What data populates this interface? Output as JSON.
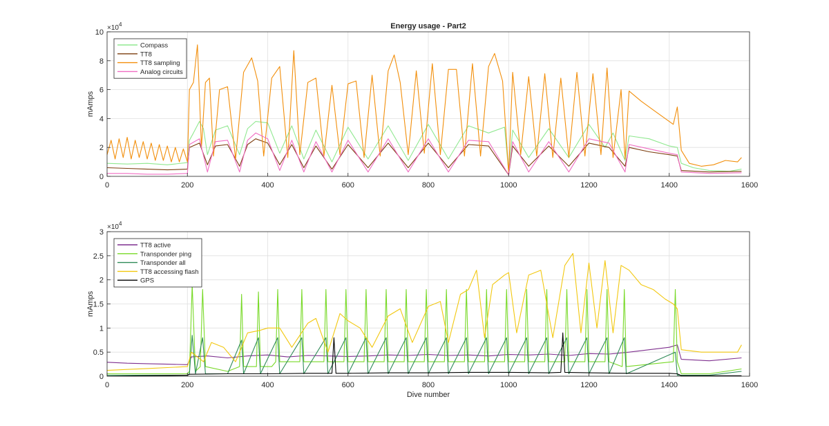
{
  "chart_data": [
    {
      "type": "line",
      "title": "Energy usage - Part2",
      "xlabel": "",
      "ylabel": "mAmps",
      "xlim": [
        0,
        1600
      ],
      "ylim": [
        0,
        10
      ],
      "y_exponent_label": "×10",
      "y_exponent_power": "4",
      "xticks": [
        0,
        200,
        400,
        600,
        800,
        1000,
        1200,
        1400,
        1600
      ],
      "yticks": [
        0,
        2,
        4,
        6,
        8,
        10
      ],
      "grid": true,
      "legend_placement": "top-left",
      "series": [
        {
          "name": "Compass",
          "color": "#8fe88f",
          "x": [
            0,
            50,
            100,
            150,
            200,
            205,
            215,
            230,
            240,
            250,
            270,
            300,
            330,
            350,
            370,
            400,
            430,
            460,
            490,
            520,
            560,
            600,
            650,
            700,
            750,
            800,
            850,
            900,
            950,
            990,
            1000,
            1010,
            1050,
            1100,
            1150,
            1200,
            1240,
            1260,
            1290,
            1300,
            1350,
            1400,
            1420,
            1430,
            1460,
            1500,
            1550,
            1580
          ],
          "y": [
            0.9,
            0.85,
            0.9,
            0.8,
            0.95,
            2.5,
            3.0,
            3.8,
            3.3,
            1.5,
            3.2,
            3.5,
            1.5,
            3.3,
            3.8,
            3.7,
            1.6,
            3.5,
            1.2,
            3.2,
            1.0,
            3.4,
            1.2,
            3.5,
            1.1,
            3.6,
            1.2,
            3.5,
            3.0,
            3.4,
            0.3,
            3.2,
            1.3,
            3.3,
            1.3,
            3.6,
            2.0,
            3.0,
            1.1,
            2.8,
            2.6,
            2.1,
            2.0,
            0.9,
            0.6,
            0.4,
            0.35,
            0.5
          ]
        },
        {
          "name": "TT8",
          "color": "#7b3c0d",
          "x": [
            0,
            50,
            100,
            150,
            200,
            205,
            230,
            250,
            270,
            300,
            330,
            350,
            370,
            400,
            430,
            460,
            490,
            520,
            560,
            600,
            650,
            700,
            750,
            800,
            850,
            900,
            950,
            1000,
            1010,
            1050,
            1100,
            1150,
            1200,
            1250,
            1290,
            1300,
            1350,
            1400,
            1420,
            1430,
            1500,
            1580
          ],
          "y": [
            0.6,
            0.55,
            0.5,
            0.45,
            0.5,
            2.0,
            2.3,
            0.8,
            2.1,
            2.2,
            0.7,
            2.2,
            2.6,
            2.3,
            0.8,
            2.2,
            0.6,
            2.1,
            0.5,
            2.2,
            0.6,
            2.3,
            0.6,
            2.3,
            0.6,
            2.2,
            2.1,
            0.1,
            2.1,
            0.7,
            2.1,
            0.7,
            2.3,
            2.0,
            0.7,
            2.0,
            1.7,
            1.5,
            1.4,
            0.4,
            0.3,
            0.35
          ]
        },
        {
          "name": "TT8 sampling",
          "color": "#f28e0a",
          "x": [
            0,
            10,
            20,
            30,
            40,
            50,
            60,
            70,
            80,
            90,
            100,
            110,
            120,
            130,
            140,
            150,
            160,
            170,
            180,
            190,
            200,
            205,
            215,
            225,
            235,
            245,
            255,
            265,
            280,
            300,
            320,
            340,
            360,
            375,
            390,
            410,
            430,
            450,
            465,
            480,
            500,
            520,
            540,
            560,
            580,
            600,
            620,
            640,
            660,
            680,
            700,
            715,
            730,
            750,
            770,
            790,
            810,
            830,
            850,
            870,
            890,
            910,
            930,
            950,
            965,
            985,
            1000,
            1010,
            1030,
            1050,
            1070,
            1090,
            1110,
            1130,
            1150,
            1170,
            1190,
            1210,
            1230,
            1245,
            1260,
            1280,
            1290,
            1300,
            1330,
            1360,
            1390,
            1410,
            1420,
            1430,
            1450,
            1480,
            1510,
            1540,
            1570,
            1580
          ],
          "y": [
            1.5,
            2.5,
            1.2,
            2.6,
            1.3,
            2.7,
            1.2,
            2.5,
            1.3,
            2.4,
            1.2,
            2.3,
            1.1,
            2.2,
            1.1,
            2.1,
            1.0,
            2.0,
            1.0,
            1.9,
            1.0,
            6.0,
            6.5,
            9.1,
            2.0,
            6.5,
            6.8,
            1.4,
            6.0,
            6.2,
            1.2,
            7.2,
            8.2,
            6.6,
            1.4,
            6.8,
            7.6,
            1.3,
            8.7,
            1.5,
            6.5,
            6.8,
            1.4,
            6.3,
            1.5,
            6.4,
            6.6,
            1.3,
            7.0,
            1.4,
            7.3,
            8.4,
            6.5,
            1.5,
            7.3,
            1.6,
            7.8,
            1.5,
            7.4,
            7.4,
            1.4,
            7.8,
            1.4,
            7.6,
            8.5,
            6.6,
            0.2,
            7.2,
            1.5,
            6.9,
            1.4,
            7.1,
            1.3,
            6.8,
            1.3,
            7.2,
            1.4,
            7.1,
            1.5,
            7.5,
            1.3,
            6.0,
            1.2,
            5.9,
            5.2,
            4.6,
            4.0,
            3.6,
            4.8,
            1.8,
            0.9,
            0.7,
            0.8,
            1.1,
            1.0,
            1.3
          ]
        },
        {
          "name": "Analog circuits",
          "color": "#f06cc2",
          "x": [
            0,
            50,
            100,
            150,
            200,
            205,
            230,
            250,
            270,
            300,
            330,
            350,
            370,
            400,
            430,
            460,
            490,
            520,
            560,
            600,
            650,
            700,
            750,
            800,
            850,
            900,
            950,
            1000,
            1010,
            1050,
            1100,
            1150,
            1200,
            1250,
            1290,
            1300,
            1350,
            1400,
            1420,
            1430,
            1500,
            1580
          ],
          "y": [
            0.2,
            0.2,
            0.15,
            0.15,
            0.2,
            2.2,
            2.6,
            0.3,
            2.4,
            2.5,
            0.3,
            2.5,
            3.0,
            2.6,
            0.4,
            2.5,
            0.3,
            2.4,
            0.3,
            2.5,
            0.3,
            2.6,
            0.3,
            2.6,
            0.3,
            2.5,
            2.4,
            0.1,
            2.4,
            0.3,
            2.4,
            0.3,
            2.6,
            2.3,
            0.3,
            2.2,
            1.9,
            1.6,
            1.5,
            0.3,
            0.2,
            0.25
          ]
        }
      ]
    },
    {
      "type": "line",
      "title": "",
      "xlabel": "Dive number",
      "ylabel": "mAmps",
      "xlim": [
        0,
        1600
      ],
      "ylim": [
        0,
        3
      ],
      "y_exponent_label": "×10",
      "y_exponent_power": "4",
      "xticks": [
        0,
        200,
        400,
        600,
        800,
        1000,
        1200,
        1400,
        1600
      ],
      "yticks": [
        0,
        0.5,
        1,
        1.5,
        2,
        2.5,
        3
      ],
      "ytick_labels": [
        "0",
        "0.5",
        "1",
        "1.5",
        "2",
        "2.5",
        "3"
      ],
      "grid": true,
      "legend_placement": "top-left",
      "series": [
        {
          "name": "TT8 active",
          "color": "#7e2f8e",
          "x": [
            0,
            50,
            100,
            150,
            200,
            210,
            250,
            300,
            350,
            400,
            450,
            500,
            550,
            600,
            650,
            700,
            750,
            800,
            850,
            900,
            950,
            1000,
            1050,
            1100,
            1150,
            1200,
            1250,
            1300,
            1350,
            1400,
            1420,
            1430,
            1500,
            1580
          ],
          "y": [
            0.29,
            0.27,
            0.26,
            0.25,
            0.24,
            0.4,
            0.42,
            0.38,
            0.42,
            0.44,
            0.4,
            0.43,
            0.42,
            0.41,
            0.42,
            0.44,
            0.43,
            0.45,
            0.43,
            0.44,
            0.42,
            0.45,
            0.44,
            0.46,
            0.43,
            0.47,
            0.46,
            0.5,
            0.55,
            0.6,
            0.65,
            0.35,
            0.32,
            0.38
          ]
        },
        {
          "name": "Transponder ping",
          "color": "#77d926",
          "x": [
            0,
            100,
            200,
            205,
            212,
            220,
            232,
            238,
            245,
            300,
            330,
            335,
            340,
            372,
            377,
            382,
            410,
            420,
            425,
            430,
            480,
            485,
            490,
            540,
            545,
            550,
            590,
            595,
            600,
            640,
            645,
            650,
            690,
            695,
            700,
            740,
            745,
            750,
            790,
            795,
            800,
            840,
            845,
            850,
            890,
            895,
            900,
            940,
            945,
            950,
            990,
            995,
            1000,
            1040,
            1045,
            1050,
            1090,
            1095,
            1100,
            1140,
            1145,
            1150,
            1190,
            1195,
            1200,
            1240,
            1245,
            1250,
            1283,
            1288,
            1293,
            1410,
            1415,
            1420,
            1430,
            1500,
            1580
          ],
          "y": [
            0.05,
            0.05,
            0.05,
            0.1,
            1.9,
            0.1,
            0.2,
            1.8,
            0.2,
            0.1,
            0.2,
            1.7,
            0.2,
            0.2,
            1.75,
            0.2,
            0.2,
            0.3,
            1.8,
            0.3,
            0.3,
            1.8,
            0.3,
            0.3,
            1.8,
            0.3,
            0.3,
            1.8,
            0.3,
            0.3,
            1.8,
            0.3,
            0.3,
            1.8,
            0.3,
            0.3,
            1.8,
            0.3,
            0.3,
            1.8,
            0.3,
            0.3,
            1.8,
            0.3,
            0.3,
            1.8,
            0.3,
            0.3,
            1.8,
            0.3,
            0.3,
            1.8,
            0.3,
            0.3,
            1.8,
            0.3,
            0.3,
            1.8,
            0.3,
            0.3,
            1.8,
            0.3,
            0.3,
            1.8,
            0.3,
            0.3,
            1.8,
            0.3,
            0.2,
            1.8,
            0.2,
            0.3,
            1.8,
            0.3,
            0.05,
            0.05,
            0.15
          ]
        },
        {
          "name": "Transponder all",
          "color": "#2e8a57",
          "x": [
            0,
            100,
            200,
            205,
            212,
            220,
            238,
            245,
            300,
            335,
            340,
            377,
            382,
            425,
            430,
            485,
            490,
            545,
            550,
            595,
            600,
            645,
            650,
            695,
            700,
            745,
            750,
            795,
            800,
            845,
            850,
            895,
            900,
            945,
            950,
            995,
            1000,
            1045,
            1050,
            1095,
            1100,
            1145,
            1150,
            1195,
            1200,
            1245,
            1250,
            1288,
            1293,
            1415,
            1420,
            1430,
            1500,
            1580
          ],
          "y": [
            0.02,
            0.02,
            0.02,
            0.05,
            0.85,
            0.05,
            0.8,
            0.05,
            0.05,
            0.75,
            0.05,
            0.8,
            0.05,
            0.8,
            0.05,
            0.8,
            0.05,
            0.8,
            0.05,
            0.8,
            0.05,
            0.8,
            0.05,
            0.8,
            0.05,
            0.8,
            0.05,
            0.8,
            0.05,
            0.8,
            0.05,
            0.8,
            0.05,
            0.8,
            0.05,
            0.8,
            0.05,
            0.8,
            0.05,
            0.8,
            0.05,
            0.8,
            0.05,
            0.8,
            0.05,
            0.8,
            0.05,
            0.8,
            0.05,
            0.5,
            0.02,
            0.02,
            0.02,
            0.1
          ]
        },
        {
          "name": "TT8 accessing flash",
          "color": "#f2c70d",
          "x": [
            0,
            50,
            100,
            150,
            200,
            210,
            240,
            260,
            290,
            320,
            350,
            380,
            400,
            430,
            460,
            500,
            520,
            550,
            580,
            600,
            630,
            660,
            700,
            730,
            760,
            800,
            830,
            850,
            880,
            900,
            920,
            940,
            960,
            990,
            1000,
            1020,
            1050,
            1080,
            1110,
            1140,
            1160,
            1180,
            1200,
            1220,
            1240,
            1260,
            1280,
            1300,
            1330,
            1360,
            1390,
            1410,
            1420,
            1430,
            1480,
            1530,
            1570,
            1580
          ],
          "y": [
            0.12,
            0.14,
            0.16,
            0.18,
            0.2,
            0.5,
            0.3,
            0.7,
            0.6,
            0.3,
            0.9,
            0.95,
            1.0,
            1.0,
            0.6,
            1.1,
            1.2,
            0.5,
            1.3,
            1.15,
            1.0,
            0.6,
            1.25,
            1.4,
            0.7,
            1.45,
            1.55,
            0.7,
            1.7,
            1.8,
            2.2,
            0.8,
            1.9,
            2.1,
            2.15,
            0.9,
            2.1,
            2.2,
            0.8,
            2.3,
            2.55,
            0.9,
            2.35,
            1.0,
            2.4,
            0.9,
            2.3,
            2.2,
            1.9,
            1.8,
            1.6,
            1.5,
            1.4,
            0.55,
            0.5,
            0.5,
            0.5,
            0.65
          ]
        },
        {
          "name": "GPS",
          "color": "#000000",
          "x": [
            0,
            100,
            200,
            205,
            300,
            400,
            500,
            560,
            565,
            570,
            600,
            700,
            800,
            900,
            1000,
            1100,
            1130,
            1135,
            1140,
            1200,
            1300,
            1400,
            1420,
            1430,
            1580
          ],
          "y": [
            0.0,
            0.01,
            0.02,
            0.04,
            0.05,
            0.05,
            0.06,
            0.06,
            0.8,
            0.06,
            0.06,
            0.07,
            0.07,
            0.08,
            0.08,
            0.07,
            0.08,
            0.9,
            0.08,
            0.07,
            0.06,
            0.06,
            0.05,
            0.01,
            0.01
          ]
        }
      ]
    }
  ]
}
